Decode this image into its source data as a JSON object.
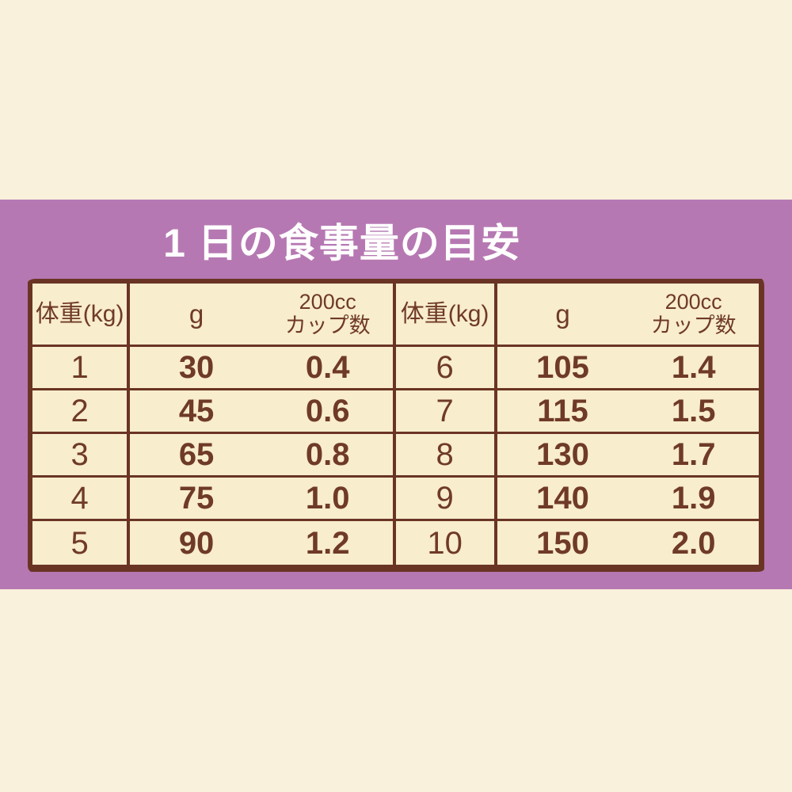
{
  "title": "1 日の食事量の目安",
  "colors": {
    "background": "#faf1dc",
    "band": "#b678b2",
    "cell": "#f8edcd",
    "border": "#6a3425",
    "text": "#6f3a28",
    "title_text": "#ffffff"
  },
  "table": {
    "headers": {
      "weight": "体重(kg)",
      "grams": "g",
      "cups_line1": "200cc",
      "cups_line2": "カップ数"
    },
    "left": [
      {
        "weight": "1",
        "grams": "30",
        "cups": "0.4"
      },
      {
        "weight": "2",
        "grams": "45",
        "cups": "0.6"
      },
      {
        "weight": "3",
        "grams": "65",
        "cups": "0.8"
      },
      {
        "weight": "4",
        "grams": "75",
        "cups": "1.0"
      },
      {
        "weight": "5",
        "grams": "90",
        "cups": "1.2"
      }
    ],
    "right": [
      {
        "weight": "6",
        "grams": "105",
        "cups": "1.4"
      },
      {
        "weight": "7",
        "grams": "115",
        "cups": "1.5"
      },
      {
        "weight": "8",
        "grams": "130",
        "cups": "1.7"
      },
      {
        "weight": "9",
        "grams": "140",
        "cups": "1.9"
      },
      {
        "weight": "10",
        "grams": "150",
        "cups": "2.0"
      }
    ]
  },
  "chart_data": {
    "type": "table",
    "title": "1 日の食事量の目安",
    "columns": [
      "体重(kg)",
      "g",
      "200ccカップ数"
    ],
    "rows": [
      [
        1,
        30,
        0.4
      ],
      [
        2,
        45,
        0.6
      ],
      [
        3,
        65,
        0.8
      ],
      [
        4,
        75,
        1.0
      ],
      [
        5,
        90,
        1.2
      ],
      [
        6,
        105,
        1.4
      ],
      [
        7,
        115,
        1.5
      ],
      [
        8,
        130,
        1.7
      ],
      [
        9,
        140,
        1.9
      ],
      [
        10,
        150,
        2.0
      ]
    ]
  }
}
